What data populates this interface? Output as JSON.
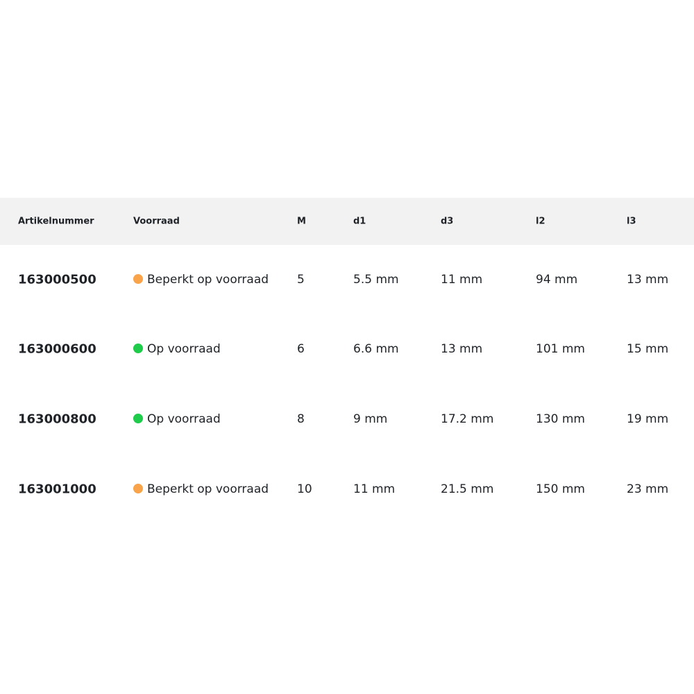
{
  "columns": [
    "Artikelnummer",
    "Voorraad",
    "M",
    "d1",
    "d3",
    "l2",
    "l3"
  ],
  "colors": {
    "limited": "#f9a44a",
    "in_stock": "#1ecb4a",
    "header_bg": "#f2f2f2"
  },
  "rows": [
    {
      "art": "163000500",
      "stock": "Beperkt op voorraad",
      "status": "limited",
      "M": "5",
      "d1": "5.5 mm",
      "d3": "11 mm",
      "l2": "94 mm",
      "l3": "13 mm"
    },
    {
      "art": "163000600",
      "stock": "Op voorraad",
      "status": "in_stock",
      "M": "6",
      "d1": "6.6 mm",
      "d3": "13 mm",
      "l2": "101 mm",
      "l3": "15 mm"
    },
    {
      "art": "163000800",
      "stock": "Op voorraad",
      "status": "in_stock",
      "M": "8",
      "d1": "9 mm",
      "d3": "17.2 mm",
      "l2": "130 mm",
      "l3": "19 mm"
    },
    {
      "art": "163001000",
      "stock": "Beperkt op voorraad",
      "status": "limited",
      "M": "10",
      "d1": "11 mm",
      "d3": "21.5 mm",
      "l2": "150 mm",
      "l3": "23 mm"
    }
  ]
}
